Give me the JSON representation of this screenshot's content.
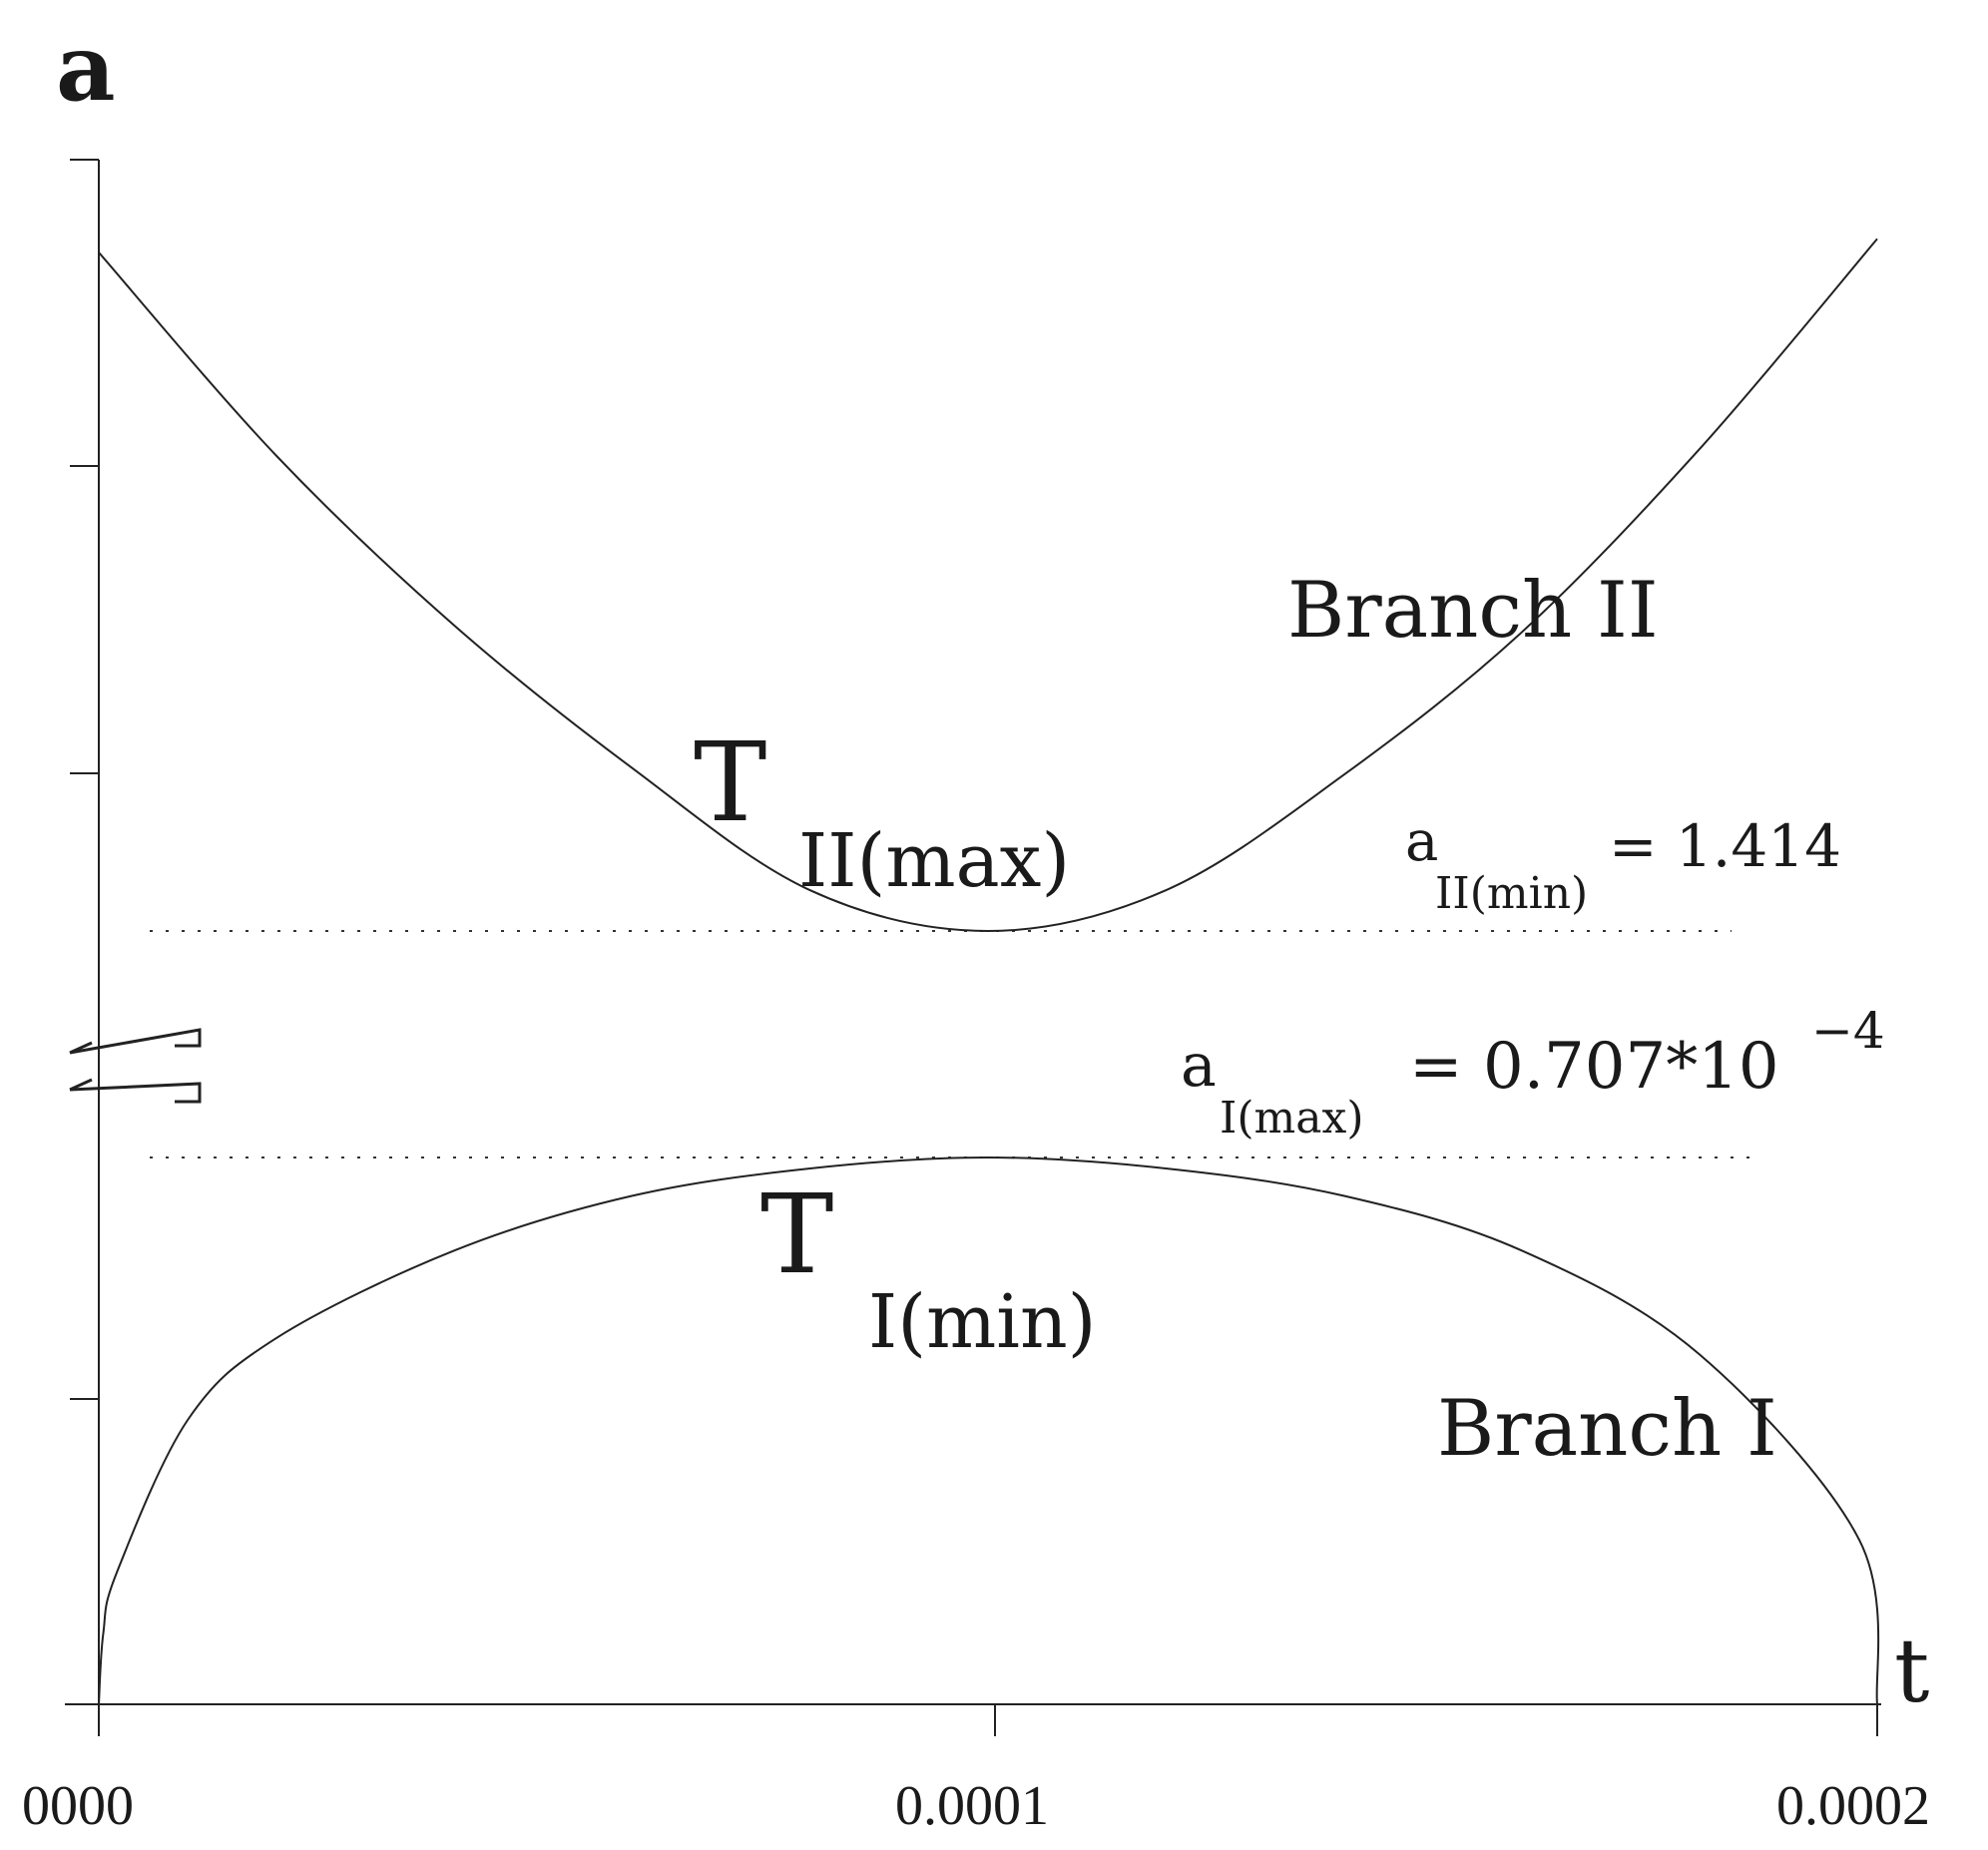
{
  "chart_data": {
    "type": "line",
    "xlabel": "t",
    "ylabel": "a",
    "x_ticks": [
      "0000",
      "0.0001",
      "0.0002"
    ],
    "xlim": [
      0,
      0.0002
    ],
    "axis_break": true,
    "series": [
      {
        "name": "Branch II",
        "x": [
          0,
          2e-05,
          4e-05,
          6e-05,
          8e-05,
          0.0001,
          0.00012,
          0.00014,
          0.00016,
          0.00018,
          0.0002
        ],
        "y_rel": [
          1.0,
          0.7,
          0.45,
          0.24,
          0.06,
          0.0,
          0.06,
          0.23,
          0.44,
          0.71,
          1.02
        ]
      },
      {
        "name": "Branch I",
        "x": [
          0,
          5e-07,
          2e-06,
          1e-05,
          2e-05,
          4e-05,
          6e-05,
          8e-05,
          0.0001,
          0.00012,
          0.00014,
          0.00016,
          0.00018,
          0.000198,
          0.0002
        ],
        "y_rel": [
          0.0,
          0.13,
          0.24,
          0.52,
          0.67,
          0.83,
          0.93,
          0.98,
          1.0,
          0.98,
          0.93,
          0.83,
          0.64,
          0.3,
          0.0
        ]
      }
    ],
    "annotations": {
      "branch2_label": "Branch II",
      "branch1_label": "Branch I",
      "t2_main": "T",
      "t2_sub": "II(max)",
      "t1_main": "T",
      "t1_sub": "I(min)",
      "a2_main": "a",
      "a2_sub": "II(min)",
      "a2_value": "= 1.414",
      "a1_main": "a",
      "a1_sub": "I(max)",
      "a1_value": "= 0.707*10",
      "a1_exp": "−4"
    }
  }
}
